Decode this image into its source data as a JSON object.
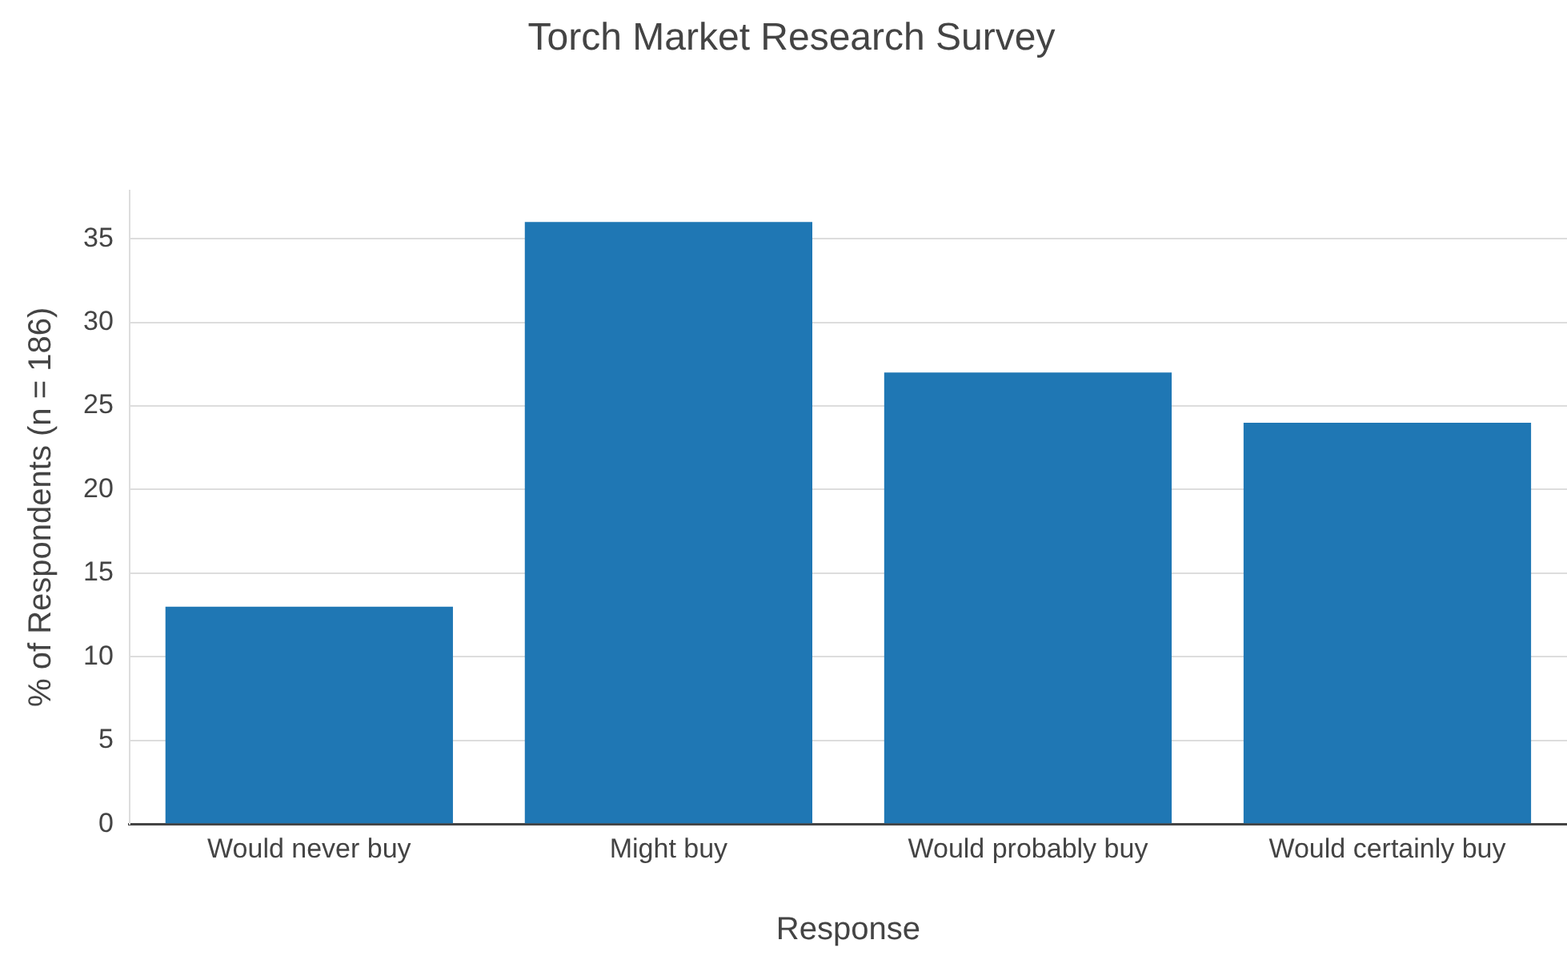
{
  "chart_data": {
    "type": "bar",
    "title": "Torch Market Research Survey",
    "xlabel": "Response",
    "ylabel": "% of Respondents (n = 186)",
    "categories": [
      "Would never buy",
      "Might buy",
      "Would probably buy",
      "Would certainly buy"
    ],
    "values": [
      13,
      36,
      27,
      24
    ],
    "color": "#1f77b4",
    "ylim": [
      0,
      37.9
    ],
    "yticks": [
      0,
      5,
      10,
      15,
      20,
      25,
      30,
      35
    ],
    "grid": "y",
    "legend": false
  }
}
